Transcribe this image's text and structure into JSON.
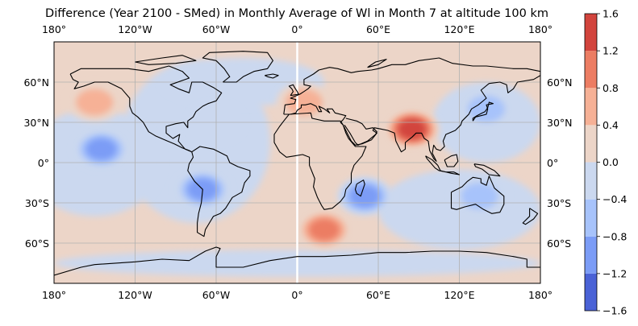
{
  "title": "Difference (Year 2100 - SMed) in Monthly Average of Wl in Month 7 at altitude 100 km",
  "map": {
    "projection": "PlateCarree",
    "extent": {
      "lon": [
        -180,
        180
      ],
      "lat": [
        -90,
        90
      ]
    },
    "gridlines": true,
    "coastlines": true,
    "colormap": "coolwarm",
    "lon_tick_labels": [
      "180°",
      "120°W",
      "60°W",
      "0°",
      "60°E",
      "120°E",
      "180°"
    ],
    "lon_ticks": [
      -180,
      -120,
      -60,
      0,
      60,
      120,
      180
    ],
    "lat_tick_labels": [
      "60°N",
      "30°N",
      "0°",
      "30°S",
      "60°S"
    ],
    "lat_ticks": [
      60,
      30,
      0,
      -30,
      -60
    ],
    "features": [
      {
        "lon": 85,
        "lat": 25,
        "value": 1.4,
        "note": "positive max over India/Tibet"
      },
      {
        "lon": 20,
        "lat": -50,
        "value": 1.3,
        "note": "positive max south of Africa"
      },
      {
        "lon": -150,
        "lat": 45,
        "value": 0.6
      },
      {
        "lon": 5,
        "lat": 45,
        "value": 0.6
      },
      {
        "lon": 60,
        "lat": 0,
        "value": 0.5
      },
      {
        "lon": -145,
        "lat": 10,
        "value": -1.3,
        "note": "negative min central Pacific"
      },
      {
        "lon": -70,
        "lat": -20,
        "value": -1.0
      },
      {
        "lon": 140,
        "lat": 40,
        "value": -0.9
      },
      {
        "lon": 50,
        "lat": -25,
        "value": -1.3
      },
      {
        "lon": 135,
        "lat": -25,
        "value": -0.8
      },
      {
        "lon": -60,
        "lat": 30,
        "value": -0.5
      }
    ]
  },
  "colorbar": {
    "levels": [
      -1.6,
      -1.2,
      -0.8,
      -0.4,
      0.0,
      0.4,
      0.8,
      1.2,
      1.6
    ],
    "tick_labels": [
      "−1.6",
      "−1.2",
      "−0.8",
      "−0.4",
      "0.0",
      "0.4",
      "0.8",
      "1.2",
      "1.6"
    ],
    "colors": [
      "#4a62d6",
      "#7b9cf6",
      "#a7c3fb",
      "#cbd8ef",
      "#ecd5c8",
      "#f6b196",
      "#ec7d63",
      "#d2443d"
    ]
  }
}
